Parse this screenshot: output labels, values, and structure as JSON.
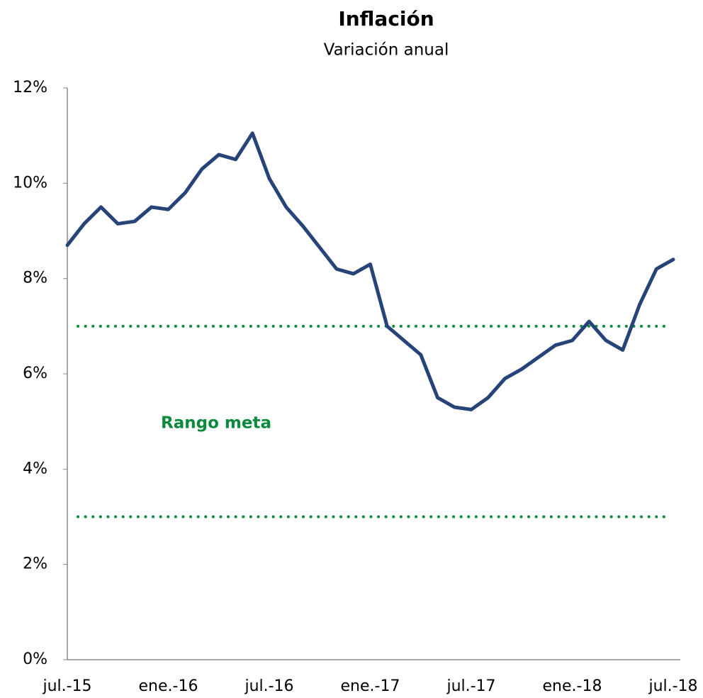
{
  "chart_data": {
    "type": "line",
    "title": "Inflación",
    "subtitle": "Variación anual",
    "categories": [
      "jul.-15",
      null,
      null,
      null,
      null,
      null,
      "ene.-16",
      null,
      null,
      null,
      null,
      null,
      "jul.-16",
      null,
      null,
      null,
      null,
      null,
      "ene.-17",
      null,
      null,
      null,
      null,
      null,
      "jul.-17",
      null,
      null,
      null,
      null,
      null,
      "ene.-18",
      null,
      null,
      null,
      null,
      null,
      "jul.-18"
    ],
    "series": [
      {
        "name": "Inflación",
        "color": "#264478",
        "values": [
          8.7,
          9.15,
          9.5,
          9.15,
          9.2,
          9.5,
          9.45,
          9.8,
          10.3,
          10.6,
          10.5,
          11.05,
          10.1,
          9.5,
          9.1,
          8.65,
          8.2,
          8.1,
          8.3,
          7.0,
          6.7,
          6.4,
          5.5,
          5.3,
          5.25,
          5.5,
          5.9,
          6.1,
          6.35,
          6.6,
          6.7,
          7.1,
          6.7,
          6.5,
          7.45,
          8.2,
          8.4
        ]
      }
    ],
    "ylim": [
      0,
      12
    ],
    "yticks": [
      {
        "value": 0,
        "label": "0%"
      },
      {
        "value": 2,
        "label": "2%"
      },
      {
        "value": 4,
        "label": "4%"
      },
      {
        "value": 6,
        "label": "6%"
      },
      {
        "value": 8,
        "label": "8%"
      },
      {
        "value": 10,
        "label": "10%"
      },
      {
        "value": 12,
        "label": "12%"
      }
    ],
    "reference_lines": [
      {
        "value": 7
      },
      {
        "value": 3
      }
    ],
    "reference_color": "#0a8a3a",
    "annotation": "Rango meta",
    "grid": false
  }
}
